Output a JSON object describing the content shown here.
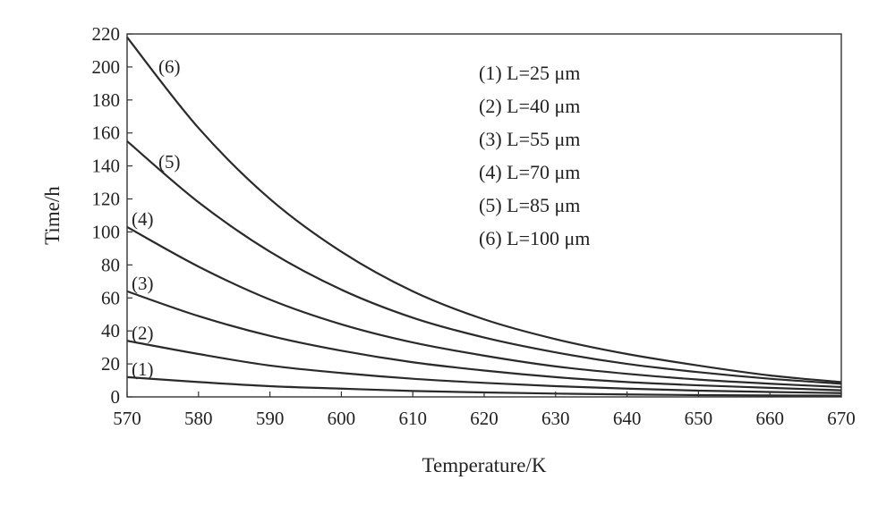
{
  "chart_data": {
    "type": "line",
    "xlabel": "Temperature/K",
    "ylabel": "Time/h",
    "xlim": [
      570,
      670
    ],
    "ylim": [
      0,
      220
    ],
    "xticks": [
      570,
      580,
      590,
      600,
      610,
      620,
      630,
      640,
      650,
      660,
      670
    ],
    "yticks": [
      0,
      20,
      40,
      60,
      80,
      100,
      120,
      140,
      160,
      180,
      200,
      220
    ],
    "legend_position": "top-right",
    "grid": false,
    "series": [
      {
        "name": "(1) L=25 μm",
        "label": "(1)",
        "x": [
          570,
          580,
          590,
          600,
          610,
          620,
          630,
          640,
          650,
          660,
          670
        ],
        "y": [
          12,
          9,
          6.5,
          5,
          3.6,
          2.7,
          2,
          1.5,
          1.1,
          0.9,
          0.7
        ]
      },
      {
        "name": "(2) L=40 μm",
        "label": "(2)",
        "x": [
          570,
          580,
          590,
          600,
          610,
          620,
          630,
          640,
          650,
          660,
          670
        ],
        "y": [
          34,
          26,
          19,
          14.5,
          11,
          8.5,
          6.5,
          5,
          3.8,
          3,
          2.3
        ]
      },
      {
        "name": "(3) L=55 μm",
        "label": "(3)",
        "x": [
          570,
          580,
          590,
          600,
          610,
          620,
          630,
          640,
          650,
          660,
          670
        ],
        "y": [
          64,
          49,
          37,
          28,
          21,
          16,
          12,
          9,
          7,
          5.5,
          4
        ]
      },
      {
        "name": "(4) L=70 μm",
        "label": "(4)",
        "x": [
          570,
          580,
          590,
          600,
          610,
          620,
          630,
          640,
          650,
          660,
          670
        ],
        "y": [
          103,
          79,
          59,
          44,
          33,
          25,
          18.5,
          14,
          10.5,
          8,
          6
        ]
      },
      {
        "name": "(5) L=85 μm",
        "label": "(5)",
        "x": [
          570,
          580,
          590,
          600,
          610,
          620,
          630,
          640,
          650,
          660,
          670
        ],
        "y": [
          155,
          118,
          88,
          65,
          48,
          36,
          27,
          20,
          15,
          11,
          8
        ]
      },
      {
        "name": "(6) L=100 μm",
        "label": "(6)",
        "x": [
          570,
          580,
          590,
          600,
          610,
          620,
          630,
          640,
          650,
          660,
          670
        ],
        "y": [
          218,
          163,
          120,
          88,
          64,
          47,
          35,
          26,
          19,
          13,
          9
        ]
      }
    ]
  }
}
